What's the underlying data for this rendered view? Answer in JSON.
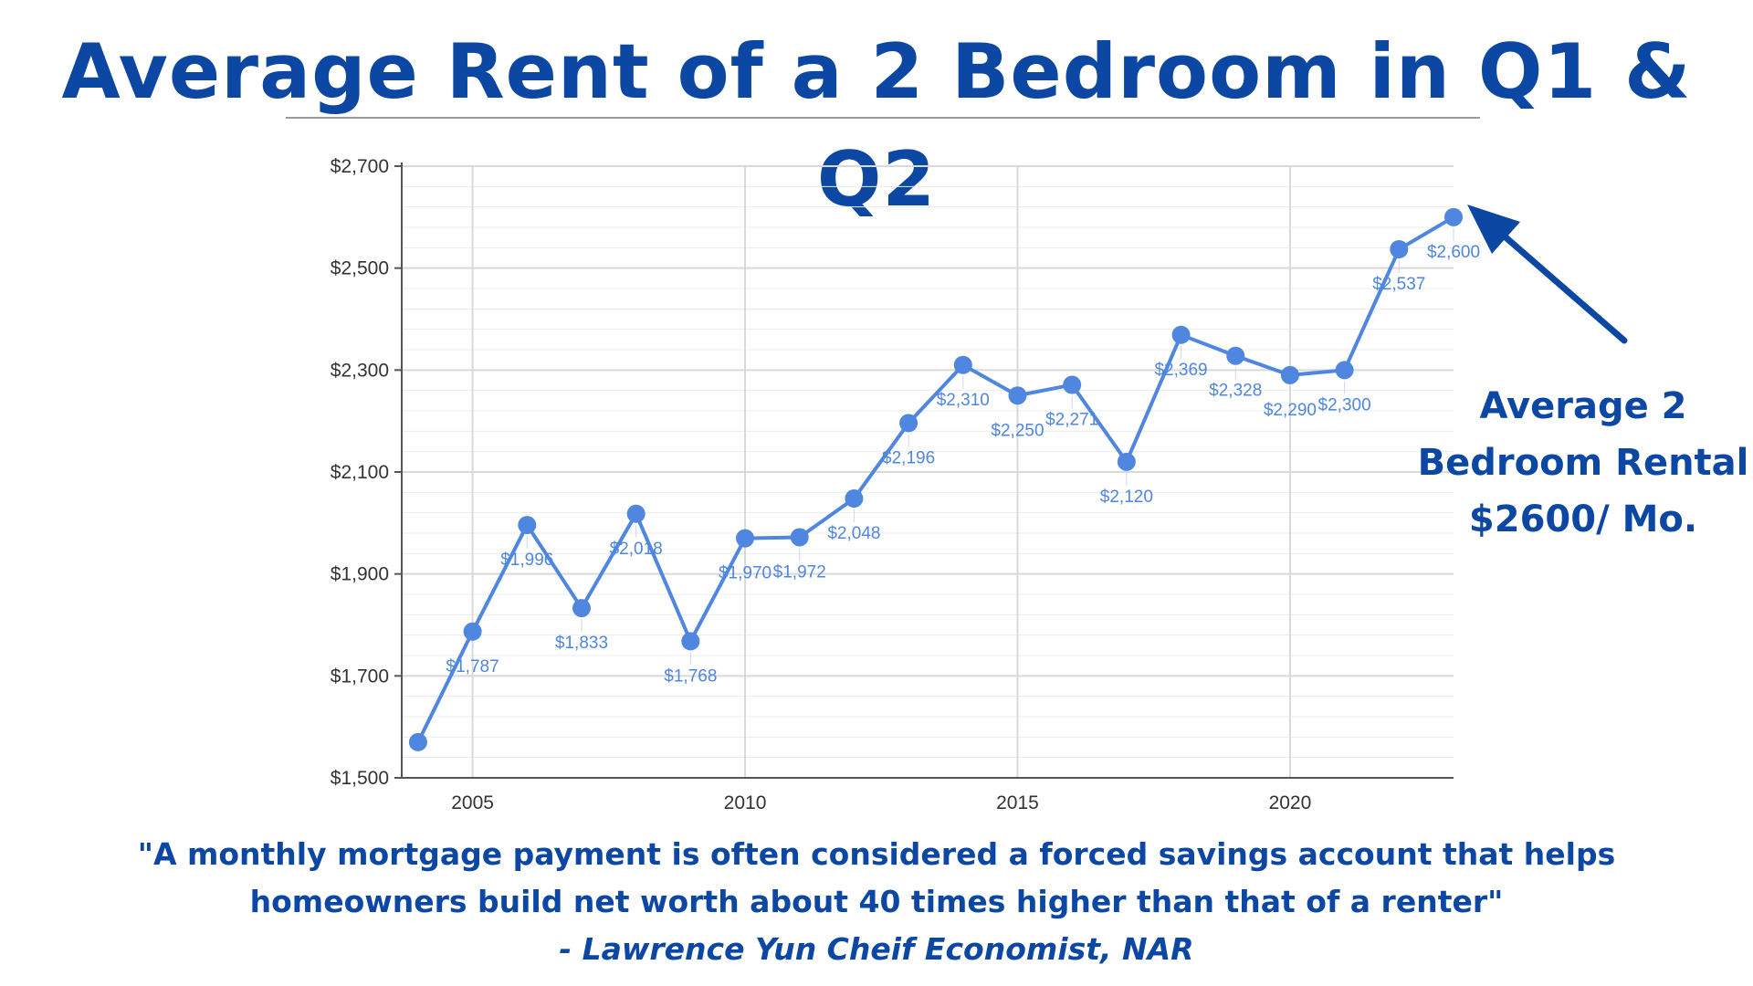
{
  "title": "Average Rent of a 2 Bedroom in Q1 & Q2",
  "callout": {
    "line1": "Average 2",
    "line2": "Bedroom Rental",
    "line3": "$2600/ Mo."
  },
  "quote": {
    "line1": "\"A monthly mortgage payment is often considered a forced savings account that helps",
    "line2": "homeowners build net worth about 40 times higher than that of a renter\"",
    "attribution": "- Lawrence Yun Cheif Economist, NAR"
  },
  "colors": {
    "title": "#0b47a3",
    "series": "#4f86e0",
    "arrow": "#0b47a3",
    "grid": "#d9d9d9"
  },
  "chart_data": {
    "type": "line",
    "title": "",
    "xlabel": "",
    "ylabel": "",
    "x": [
      2004,
      2005,
      2006,
      2007,
      2008,
      2009,
      2010,
      2011,
      2012,
      2013,
      2014,
      2015,
      2016,
      2017,
      2018,
      2019,
      2020,
      2021,
      2022,
      2023
    ],
    "series": [
      {
        "values": [
          1570,
          1787,
          1996,
          1833,
          2018,
          1768,
          1970,
          1972,
          2048,
          2196,
          2310,
          2250,
          2271,
          2120,
          2369,
          2328,
          2290,
          2300,
          2537,
          2600
        ],
        "labels": [
          "",
          "$1,787",
          "$1,996",
          "$1,833",
          "$2,018",
          "$1,768",
          "$1,970",
          "$1,972",
          "$2,048",
          "$2,196",
          "$2,310",
          "$2,250",
          "$2,271",
          "$2,120",
          "$2,369",
          "$2,328",
          "$2,290",
          "$2,300",
          "$2,537",
          "$2,600"
        ]
      }
    ],
    "ylim": [
      1500,
      2700
    ],
    "y_ticks": [
      1500,
      1700,
      1900,
      2100,
      2300,
      2500,
      2700
    ],
    "y_tick_labels": [
      "$1,500",
      "$1,700",
      "$1,900",
      "$2,100",
      "$2,300",
      "$2,500",
      "$2,700"
    ],
    "x_ticks": [
      2005,
      2010,
      2015,
      2020
    ],
    "x_tick_labels": [
      "2005",
      "2010",
      "2015",
      "2020"
    ],
    "xlim": [
      2003.7,
      2023
    ],
    "grid": true
  }
}
